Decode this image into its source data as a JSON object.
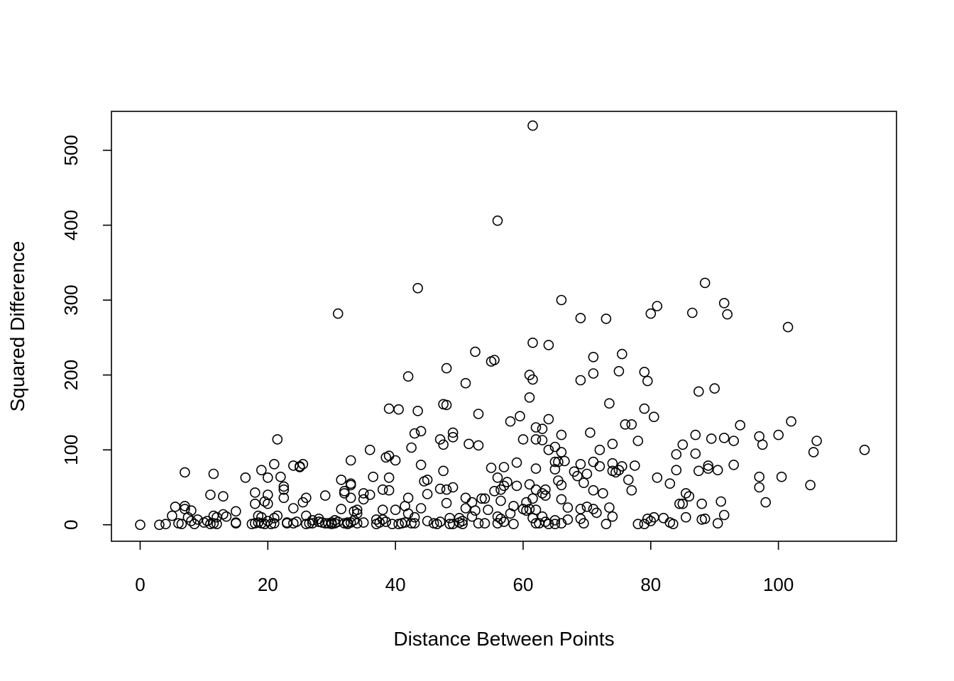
{
  "chart_data": {
    "type": "scatter",
    "title": "",
    "xlabel": "Distance Between Points",
    "ylabel": "Squared Difference",
    "xlim": [
      -4.5,
      118.5
    ],
    "ylim": [
      -22,
      552
    ],
    "x_ticks": [
      0,
      20,
      40,
      60,
      80,
      100
    ],
    "y_ticks": [
      0,
      100,
      200,
      300,
      400,
      500
    ],
    "grid": false,
    "marker": "open-circle",
    "points": [
      [
        0,
        0
      ],
      [
        3,
        0
      ],
      [
        4,
        1
      ],
      [
        5,
        12
      ],
      [
        5.5,
        24
      ],
      [
        6,
        2
      ],
      [
        6.5,
        1
      ],
      [
        7,
        25
      ],
      [
        7,
        21
      ],
      [
        7,
        70
      ],
      [
        7.5,
        10
      ],
      [
        8,
        19
      ],
      [
        8,
        5
      ],
      [
        8.5,
        1
      ],
      [
        9,
        7
      ],
      [
        10,
        3
      ],
      [
        10.5,
        5
      ],
      [
        11,
        1
      ],
      [
        11,
        40
      ],
      [
        11.5,
        68
      ],
      [
        11.5,
        12
      ],
      [
        11.5,
        2
      ],
      [
        12,
        1
      ],
      [
        12,
        10
      ],
      [
        13,
        38
      ],
      [
        13,
        14
      ],
      [
        13.5,
        11
      ],
      [
        15,
        3
      ],
      [
        15,
        2
      ],
      [
        15,
        18
      ],
      [
        16.5,
        63
      ],
      [
        17.5,
        1
      ],
      [
        18,
        43
      ],
      [
        18,
        28
      ],
      [
        18,
        2
      ],
      [
        18.5,
        12
      ],
      [
        18.5,
        3
      ],
      [
        19,
        2
      ],
      [
        19,
        10
      ],
      [
        19,
        73
      ],
      [
        19.5,
        31
      ],
      [
        19.5,
        1
      ],
      [
        20,
        63
      ],
      [
        20,
        28
      ],
      [
        20,
        40
      ],
      [
        20,
        5
      ],
      [
        20.5,
        1
      ],
      [
        21,
        81
      ],
      [
        21,
        2
      ],
      [
        21,
        9
      ],
      [
        21.5,
        114
      ],
      [
        21.5,
        12
      ],
      [
        22,
        64
      ],
      [
        22.5,
        51
      ],
      [
        22.5,
        47
      ],
      [
        22.5,
        36
      ],
      [
        23,
        2
      ],
      [
        23,
        3
      ],
      [
        24,
        22
      ],
      [
        24,
        79
      ],
      [
        24,
        2
      ],
      [
        24.5,
        4
      ],
      [
        25,
        78
      ],
      [
        25,
        77
      ],
      [
        25.5,
        81
      ],
      [
        25.5,
        30
      ],
      [
        26,
        12
      ],
      [
        26,
        36
      ],
      [
        26,
        1
      ],
      [
        26.5,
        2
      ],
      [
        27,
        2
      ],
      [
        27,
        6
      ],
      [
        28,
        4
      ],
      [
        28,
        8
      ],
      [
        28.5,
        3
      ],
      [
        29,
        2
      ],
      [
        29,
        39
      ],
      [
        29.5,
        2
      ],
      [
        30,
        1
      ],
      [
        30,
        3
      ],
      [
        30.5,
        6
      ],
      [
        30.5,
        2
      ],
      [
        31,
        282
      ],
      [
        31,
        4
      ],
      [
        31.5,
        60
      ],
      [
        31.5,
        21
      ],
      [
        32,
        42
      ],
      [
        32,
        2
      ],
      [
        32,
        45
      ],
      [
        32.5,
        3
      ],
      [
        32.5,
        1
      ],
      [
        33,
        53
      ],
      [
        33,
        55
      ],
      [
        33,
        86
      ],
      [
        33,
        36
      ],
      [
        33,
        3
      ],
      [
        33.5,
        18
      ],
      [
        33.5,
        6
      ],
      [
        34,
        20
      ],
      [
        34,
        2
      ],
      [
        34,
        15
      ],
      [
        35,
        42
      ],
      [
        35,
        34
      ],
      [
        35,
        3
      ],
      [
        36,
        100
      ],
      [
        36,
        40
      ],
      [
        36.5,
        64
      ],
      [
        37,
        1
      ],
      [
        37,
        7
      ],
      [
        37.5,
        3
      ],
      [
        38,
        47
      ],
      [
        38,
        20
      ],
      [
        38,
        7
      ],
      [
        38.5,
        90
      ],
      [
        38.5,
        4
      ],
      [
        39,
        63
      ],
      [
        39,
        46
      ],
      [
        39,
        92
      ],
      [
        39,
        155
      ],
      [
        39.5,
        1
      ],
      [
        40,
        86
      ],
      [
        40,
        20
      ],
      [
        40.5,
        154
      ],
      [
        40.5,
        1
      ],
      [
        41,
        2
      ],
      [
        41.5,
        25
      ],
      [
        41.5,
        3
      ],
      [
        42,
        36
      ],
      [
        42,
        198
      ],
      [
        42,
        15
      ],
      [
        42.5,
        103
      ],
      [
        42.5,
        2
      ],
      [
        43,
        2
      ],
      [
        43,
        122
      ],
      [
        43,
        10
      ],
      [
        43.5,
        316
      ],
      [
        43.5,
        152
      ],
      [
        44,
        125
      ],
      [
        44,
        80
      ],
      [
        44,
        22
      ],
      [
        44.5,
        58
      ],
      [
        45,
        60
      ],
      [
        45,
        41
      ],
      [
        45,
        5
      ],
      [
        46,
        2
      ],
      [
        46.5,
        1
      ],
      [
        47,
        114
      ],
      [
        47,
        48
      ],
      [
        47,
        4
      ],
      [
        47.5,
        161
      ],
      [
        47.5,
        72
      ],
      [
        47.5,
        107
      ],
      [
        48,
        209
      ],
      [
        48,
        160
      ],
      [
        48,
        29
      ],
      [
        48,
        47
      ],
      [
        48.5,
        1
      ],
      [
        48.5,
        9
      ],
      [
        49,
        1
      ],
      [
        49,
        117
      ],
      [
        49,
        50
      ],
      [
        49,
        123
      ],
      [
        50,
        3
      ],
      [
        50,
        9
      ],
      [
        50.5,
        5
      ],
      [
        50.5,
        1
      ],
      [
        51,
        189
      ],
      [
        51,
        36
      ],
      [
        51,
        22
      ],
      [
        51.5,
        108
      ],
      [
        52,
        30
      ],
      [
        52,
        11
      ],
      [
        52.5,
        19
      ],
      [
        52.5,
        231
      ],
      [
        53,
        148
      ],
      [
        53,
        106
      ],
      [
        53,
        2
      ],
      [
        53.5,
        35
      ],
      [
        54,
        35
      ],
      [
        54,
        2
      ],
      [
        54.5,
        20
      ],
      [
        55,
        218
      ],
      [
        55,
        76
      ],
      [
        55.5,
        220
      ],
      [
        55.5,
        45
      ],
      [
        56,
        2
      ],
      [
        56,
        11
      ],
      [
        56,
        406
      ],
      [
        56,
        63
      ],
      [
        56.5,
        47
      ],
      [
        56.5,
        32
      ],
      [
        56.5,
        8
      ],
      [
        57,
        4
      ],
      [
        57,
        77
      ],
      [
        57,
        52
      ],
      [
        57.5,
        57
      ],
      [
        58,
        138
      ],
      [
        58,
        15
      ],
      [
        58.5,
        25
      ],
      [
        58.5,
        1
      ],
      [
        59,
        83
      ],
      [
        59,
        52
      ],
      [
        59.5,
        145
      ],
      [
        60,
        114
      ],
      [
        60,
        21
      ],
      [
        60.5,
        30
      ],
      [
        60.5,
        19
      ],
      [
        61,
        200
      ],
      [
        61,
        170
      ],
      [
        61,
        54
      ],
      [
        61,
        21
      ],
      [
        61.5,
        243
      ],
      [
        61.5,
        194
      ],
      [
        61.5,
        533
      ],
      [
        61.5,
        35
      ],
      [
        61.5,
        9
      ],
      [
        62,
        130
      ],
      [
        62,
        114
      ],
      [
        62,
        75
      ],
      [
        62,
        47
      ],
      [
        62,
        20
      ],
      [
        62,
        2
      ],
      [
        62.5,
        2
      ],
      [
        63,
        128
      ],
      [
        63,
        113
      ],
      [
        63,
        42
      ],
      [
        63,
        11
      ],
      [
        63.5,
        47
      ],
      [
        63.5,
        39
      ],
      [
        63.5,
        4
      ],
      [
        64,
        100
      ],
      [
        64,
        240
      ],
      [
        64,
        141
      ],
      [
        64,
        1
      ],
      [
        65,
        104
      ],
      [
        65,
        74
      ],
      [
        65,
        84
      ],
      [
        65,
        6
      ],
      [
        65,
        1
      ],
      [
        65.5,
        84
      ],
      [
        65.5,
        59
      ],
      [
        66,
        300
      ],
      [
        66,
        120
      ],
      [
        66,
        97
      ],
      [
        66,
        53
      ],
      [
        66,
        34
      ],
      [
        66,
        2
      ],
      [
        66.5,
        85
      ],
      [
        67,
        23
      ],
      [
        67,
        7
      ],
      [
        68,
        71
      ],
      [
        68.5,
        65
      ],
      [
        69,
        276
      ],
      [
        69,
        193
      ],
      [
        69,
        81
      ],
      [
        69,
        21
      ],
      [
        69,
        8
      ],
      [
        69.5,
        2
      ],
      [
        69.5,
        56
      ],
      [
        70,
        68
      ],
      [
        70,
        24
      ],
      [
        70.5,
        123
      ],
      [
        71,
        224
      ],
      [
        71,
        202
      ],
      [
        71,
        84
      ],
      [
        71,
        46
      ],
      [
        71,
        21
      ],
      [
        71.5,
        16
      ],
      [
        72,
        100
      ],
      [
        72,
        78
      ],
      [
        72.5,
        42
      ],
      [
        73,
        1
      ],
      [
        73,
        275
      ],
      [
        73.5,
        162
      ],
      [
        73.5,
        23
      ],
      [
        74,
        108
      ],
      [
        74,
        82
      ],
      [
        74,
        72
      ],
      [
        74,
        11
      ],
      [
        74.5,
        70
      ],
      [
        75,
        205
      ],
      [
        75,
        73
      ],
      [
        75.5,
        78
      ],
      [
        75.5,
        228
      ],
      [
        76,
        134
      ],
      [
        76.5,
        60
      ],
      [
        77,
        46
      ],
      [
        77,
        134
      ],
      [
        77.5,
        79
      ],
      [
        78,
        1
      ],
      [
        78,
        112
      ],
      [
        79,
        155
      ],
      [
        79,
        1
      ],
      [
        79,
        204
      ],
      [
        79.5,
        192
      ],
      [
        79.5,
        8
      ],
      [
        80,
        282
      ],
      [
        80,
        5
      ],
      [
        80.5,
        144
      ],
      [
        80.5,
        10
      ],
      [
        81,
        63
      ],
      [
        81,
        292
      ],
      [
        82,
        9
      ],
      [
        83,
        3
      ],
      [
        83,
        55
      ],
      [
        83.5,
        1
      ],
      [
        84,
        94
      ],
      [
        84,
        73
      ],
      [
        84.5,
        28
      ],
      [
        85,
        107
      ],
      [
        85,
        28
      ],
      [
        85.5,
        42
      ],
      [
        85.5,
        10
      ],
      [
        86,
        38
      ],
      [
        86.5,
        283
      ],
      [
        87,
        95
      ],
      [
        87,
        120
      ],
      [
        87.5,
        178
      ],
      [
        87.5,
        72
      ],
      [
        88,
        28
      ],
      [
        88,
        7
      ],
      [
        88.5,
        323
      ],
      [
        88.5,
        8
      ],
      [
        89,
        79
      ],
      [
        89,
        75
      ],
      [
        89.5,
        115
      ],
      [
        90,
        182
      ],
      [
        90.5,
        73
      ],
      [
        90.5,
        2
      ],
      [
        91,
        31
      ],
      [
        91.5,
        13
      ],
      [
        91.5,
        296
      ],
      [
        91.5,
        116
      ],
      [
        92,
        281
      ],
      [
        93,
        112
      ],
      [
        93,
        80
      ],
      [
        94,
        133
      ],
      [
        97,
        118
      ],
      [
        97,
        64
      ],
      [
        97,
        50
      ],
      [
        97.5,
        107
      ],
      [
        98,
        30
      ],
      [
        100,
        120
      ],
      [
        100.5,
        64
      ],
      [
        101.5,
        264
      ],
      [
        102,
        138
      ],
      [
        105,
        53
      ],
      [
        105.5,
        97
      ],
      [
        106,
        112
      ],
      [
        113.5,
        100
      ]
    ]
  }
}
